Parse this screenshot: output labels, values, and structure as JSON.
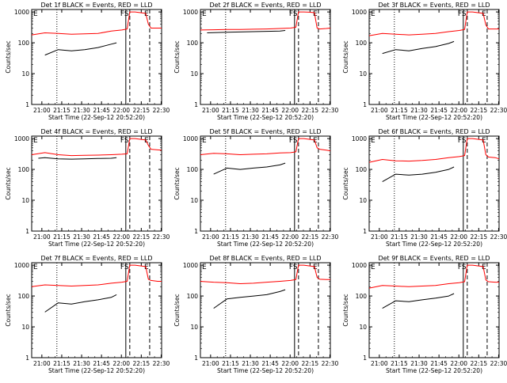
{
  "figure": {
    "xlabel": "Start Time (22-Sep-12 20:52:20)",
    "ylabel": "Counts/sec",
    "x_tick_labels": [
      "21:00",
      "21:15",
      "21:30",
      "21:45",
      "22:00",
      "22:15",
      "22:30"
    ],
    "y_tick_labels": [
      "1",
      "10",
      "100",
      "1000"
    ],
    "markers": [
      {
        "label": "F",
        "time_min": 71,
        "style": "solid"
      },
      {
        "label": "S",
        "time_min": 74,
        "style": "dashed"
      },
      {
        "label": "E",
        "time_min": 89,
        "style": "dashed"
      }
    ],
    "extra_vline": {
      "time_min": 19,
      "style": "dotted"
    },
    "colors": {
      "events": "#000000",
      "lld": "#ff0000",
      "axes": "#000000"
    }
  },
  "chart_data": [
    {
      "type": "line",
      "title": "Det 1f BLACK = Events, RED = LLD",
      "xlabel": "Start Time (22-Sep-12 20:52:20)",
      "ylabel": "Counts/sec",
      "xlim": [
        0,
        98
      ],
      "ylim": [
        1,
        1200
      ],
      "x_unit": "minutes after 20:52:20",
      "series": [
        {
          "name": "Events",
          "color": "#000000",
          "x": [
            10,
            20,
            30,
            40,
            50,
            60,
            64
          ],
          "y": [
            40,
            60,
            55,
            60,
            70,
            90,
            100
          ]
        },
        {
          "name": "LLD",
          "color": "#ff0000",
          "x": [
            0,
            10,
            20,
            30,
            40,
            50,
            60,
            68,
            72,
            74,
            78,
            82,
            86,
            88,
            90,
            95,
            98
          ],
          "y": [
            180,
            210,
            200,
            190,
            195,
            200,
            240,
            260,
            280,
            1000,
            1000,
            950,
            900,
            400,
            300,
            300,
            300
          ]
        }
      ]
    },
    {
      "type": "line",
      "title": "Det 2f BLACK = Events, RED = LLD",
      "xlabel": "Start Time (22-Sep-12 20:52:20)",
      "ylabel": "Counts/sec",
      "xlim": [
        0,
        98
      ],
      "ylim": [
        1,
        1200
      ],
      "x_unit": "minutes after 20:52:20",
      "series": [
        {
          "name": "Events",
          "color": "#000000",
          "x": [
            5,
            20,
            40,
            60,
            64
          ],
          "y": [
            210,
            220,
            230,
            240,
            250
          ]
        },
        {
          "name": "LLD",
          "color": "#ff0000",
          "x": [
            0,
            10,
            20,
            30,
            40,
            50,
            60,
            68,
            72,
            74,
            78,
            82,
            86,
            88,
            90,
            95,
            98
          ],
          "y": [
            260,
            265,
            270,
            270,
            275,
            280,
            290,
            300,
            320,
            1000,
            1000,
            980,
            950,
            300,
            280,
            290,
            300
          ]
        }
      ]
    },
    {
      "type": "line",
      "title": "Det 3f BLACK = Events, RED = LLD",
      "xlabel": "Start Time (22-Sep-12 20:52:20)",
      "ylabel": "Counts/sec",
      "xlim": [
        0,
        98
      ],
      "ylim": [
        1,
        1200
      ],
      "x_unit": "minutes after 20:52:20",
      "series": [
        {
          "name": "Events",
          "color": "#000000",
          "x": [
            10,
            20,
            30,
            40,
            50,
            60,
            64
          ],
          "y": [
            45,
            60,
            55,
            65,
            75,
            95,
            110
          ]
        },
        {
          "name": "LLD",
          "color": "#ff0000",
          "x": [
            0,
            10,
            20,
            30,
            40,
            50,
            60,
            68,
            72,
            74,
            78,
            82,
            86,
            88,
            90,
            95,
            98
          ],
          "y": [
            170,
            200,
            190,
            180,
            190,
            200,
            230,
            250,
            270,
            1000,
            1000,
            950,
            900,
            380,
            280,
            280,
            280
          ]
        }
      ]
    },
    {
      "type": "line",
      "title": "Det 4f BLACK = Events, RED = LLD",
      "xlabel": "Start Time (22-Sep-12 20:52:20)",
      "ylabel": "Counts/sec",
      "xlim": [
        0,
        98
      ],
      "ylim": [
        1,
        1200
      ],
      "x_unit": "minutes after 20:52:20",
      "series": [
        {
          "name": "Events",
          "color": "#000000",
          "x": [
            5,
            10,
            20,
            30,
            40,
            50,
            60,
            64
          ],
          "y": [
            230,
            240,
            220,
            215,
            220,
            225,
            230,
            240
          ]
        },
        {
          "name": "LLD",
          "color": "#ff0000",
          "x": [
            0,
            10,
            20,
            30,
            40,
            50,
            60,
            68,
            72,
            74,
            78,
            82,
            86,
            88,
            90,
            95,
            98
          ],
          "y": [
            300,
            350,
            300,
            280,
            285,
            290,
            300,
            310,
            320,
            1000,
            1000,
            950,
            900,
            600,
            450,
            430,
            420
          ]
        }
      ]
    },
    {
      "type": "line",
      "title": "Det 5f BLACK = Events, RED = LLD",
      "xlabel": "Start Time (22-Sep-12 20:52:20)",
      "ylabel": "Counts/sec",
      "xlim": [
        0,
        98
      ],
      "ylim": [
        1,
        1200
      ],
      "x_unit": "minutes after 20:52:20",
      "series": [
        {
          "name": "Events",
          "color": "#000000",
          "x": [
            10,
            20,
            30,
            40,
            50,
            60,
            64
          ],
          "y": [
            70,
            110,
            100,
            110,
            120,
            140,
            160
          ]
        },
        {
          "name": "LLD",
          "color": "#ff0000",
          "x": [
            0,
            10,
            20,
            30,
            40,
            50,
            60,
            68,
            72,
            74,
            78,
            82,
            86,
            88,
            90,
            95,
            98
          ],
          "y": [
            300,
            330,
            320,
            300,
            310,
            320,
            340,
            350,
            370,
            1000,
            1000,
            950,
            900,
            500,
            450,
            420,
            400
          ]
        }
      ]
    },
    {
      "type": "line",
      "title": "Det 6f BLACK = Events, RED = LLD",
      "xlabel": "Start Time (22-Sep-12 20:52:20)",
      "ylabel": "Counts/sec",
      "xlim": [
        0,
        98
      ],
      "ylim": [
        1,
        1200
      ],
      "x_unit": "minutes after 20:52:20",
      "series": [
        {
          "name": "Events",
          "color": "#000000",
          "x": [
            10,
            20,
            30,
            40,
            50,
            60,
            64
          ],
          "y": [
            40,
            70,
            65,
            70,
            80,
            100,
            120
          ]
        },
        {
          "name": "LLD",
          "color": "#ff0000",
          "x": [
            0,
            10,
            20,
            30,
            40,
            50,
            60,
            68,
            72,
            74,
            78,
            82,
            86,
            88,
            90,
            95,
            98
          ],
          "y": [
            170,
            210,
            190,
            185,
            195,
            210,
            240,
            260,
            280,
            1000,
            1000,
            950,
            900,
            300,
            250,
            240,
            220
          ]
        }
      ]
    },
    {
      "type": "line",
      "title": "Det 7f BLACK = Events, RED = LLD",
      "xlabel": "Start Time (22-Sep-12 20:52:20)",
      "ylabel": "Counts/sec",
      "xlim": [
        0,
        98
      ],
      "ylim": [
        1,
        1200
      ],
      "x_unit": "minutes after 20:52:20",
      "series": [
        {
          "name": "Events",
          "color": "#000000",
          "x": [
            10,
            20,
            30,
            40,
            50,
            60,
            64
          ],
          "y": [
            30,
            60,
            55,
            65,
            75,
            90,
            110
          ]
        },
        {
          "name": "LLD",
          "color": "#ff0000",
          "x": [
            0,
            10,
            20,
            30,
            40,
            50,
            60,
            68,
            72,
            74,
            78,
            82,
            86,
            88,
            90,
            95,
            98
          ],
          "y": [
            200,
            230,
            220,
            210,
            220,
            230,
            260,
            280,
            300,
            1000,
            1000,
            950,
            900,
            350,
            320,
            300,
            300
          ]
        }
      ]
    },
    {
      "type": "line",
      "title": "Det 8f BLACK = Events, RED = LLD",
      "xlabel": "Start Time (22-Sep-12 20:52:20)",
      "ylabel": "Counts/sec",
      "xlim": [
        0,
        98
      ],
      "ylim": [
        1,
        1200
      ],
      "x_unit": "minutes after 20:52:20",
      "series": [
        {
          "name": "Events",
          "color": "#000000",
          "x": [
            10,
            20,
            30,
            40,
            50,
            60,
            64
          ],
          "y": [
            40,
            80,
            90,
            100,
            110,
            140,
            160
          ]
        },
        {
          "name": "LLD",
          "color": "#ff0000",
          "x": [
            0,
            10,
            20,
            30,
            40,
            50,
            60,
            68,
            72,
            74,
            78,
            82,
            86,
            88,
            90,
            95,
            98
          ],
          "y": [
            300,
            280,
            270,
            250,
            260,
            280,
            300,
            320,
            340,
            1000,
            1000,
            950,
            900,
            400,
            350,
            340,
            340
          ]
        }
      ]
    },
    {
      "type": "line",
      "title": "Det 9f BLACK = Events, RED = LLD",
      "xlabel": "Start Time (22-Sep-12 20:52:20)",
      "ylabel": "Counts/sec",
      "xlim": [
        0,
        98
      ],
      "ylim": [
        1,
        1200
      ],
      "x_unit": "minutes after 20:52:20",
      "series": [
        {
          "name": "Events",
          "color": "#000000",
          "x": [
            10,
            20,
            30,
            40,
            50,
            60,
            64
          ],
          "y": [
            40,
            70,
            65,
            75,
            85,
            100,
            120
          ]
        },
        {
          "name": "LLD",
          "color": "#ff0000",
          "x": [
            0,
            10,
            20,
            30,
            40,
            50,
            60,
            68,
            72,
            74,
            78,
            82,
            86,
            88,
            90,
            95,
            98
          ],
          "y": [
            180,
            220,
            210,
            200,
            210,
            220,
            250,
            270,
            290,
            1000,
            1000,
            950,
            900,
            330,
            290,
            280,
            280
          ]
        }
      ]
    }
  ]
}
